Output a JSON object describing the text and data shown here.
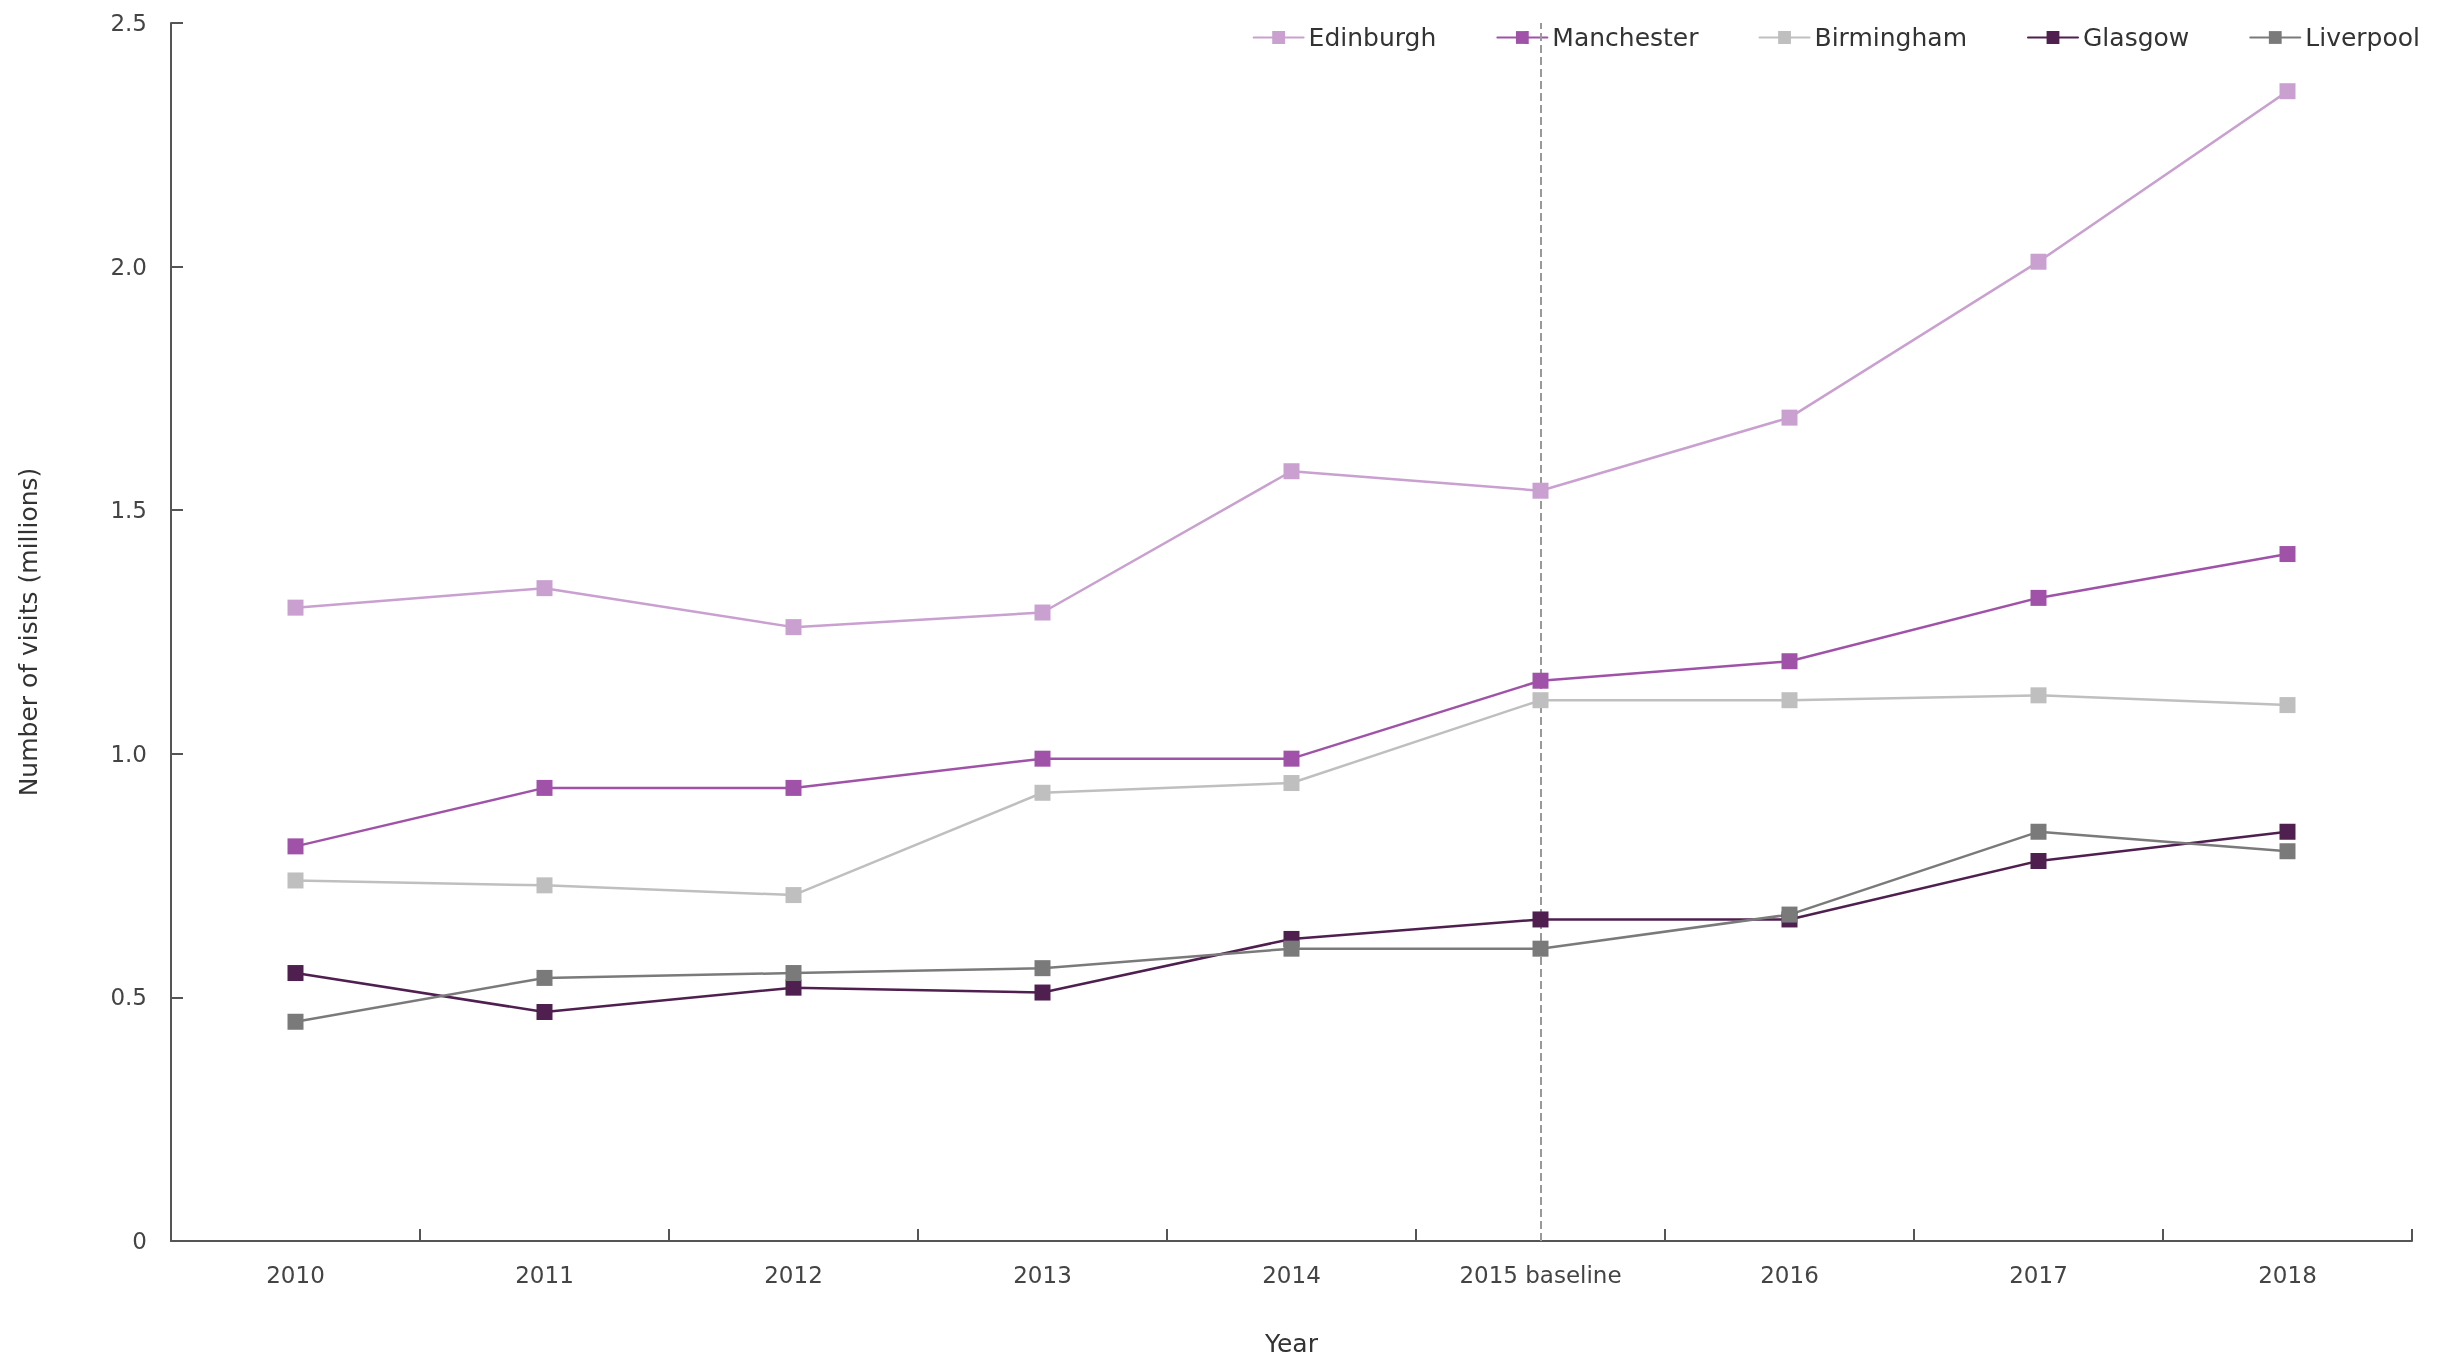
{
  "chart_data": {
    "type": "line",
    "xlabel": "Year",
    "ylabel": "Number of visits (millions)",
    "categories": [
      "2010",
      "2011",
      "2012",
      "2013",
      "2014",
      "2015 baseline",
      "2016",
      "2017",
      "2018"
    ],
    "series": [
      {
        "name": "Edinburgh",
        "color": "#c9a0d0",
        "values": [
          1.3,
          1.34,
          1.26,
          1.29,
          1.58,
          1.54,
          1.69,
          2.01,
          2.36
        ]
      },
      {
        "name": "Manchester",
        "color": "#a052a8",
        "values": [
          0.81,
          0.93,
          0.93,
          0.99,
          0.99,
          1.15,
          1.19,
          1.32,
          1.41
        ]
      },
      {
        "name": "Birmingham",
        "color": "#bfbfbf",
        "values": [
          0.74,
          0.73,
          0.71,
          0.92,
          0.94,
          1.11,
          1.11,
          1.12,
          1.1
        ]
      },
      {
        "name": "Glasgow",
        "color": "#4f1f4f",
        "values": [
          0.55,
          0.47,
          0.52,
          0.51,
          0.62,
          0.66,
          0.66,
          0.78,
          0.84
        ]
      },
      {
        "name": "Liverpool",
        "color": "#7a7a7a",
        "values": [
          0.45,
          0.54,
          0.55,
          0.56,
          0.6,
          0.6,
          0.67,
          0.84,
          0.8
        ]
      }
    ],
    "ylim": [
      0,
      2.5
    ],
    "yticks": [
      0,
      0.5,
      {
        "value": 1,
        "label": "1.0"
      },
      1.5,
      {
        "value": 2,
        "label": "2.0"
      },
      2.5
    ],
    "ref_lines": [
      {
        "axis": "x",
        "value": "2015 baseline",
        "color": "#999999",
        "line_style": "dashed"
      }
    ],
    "grid": false,
    "legend": "top right",
    "marker": "square",
    "line_style": "solid"
  }
}
